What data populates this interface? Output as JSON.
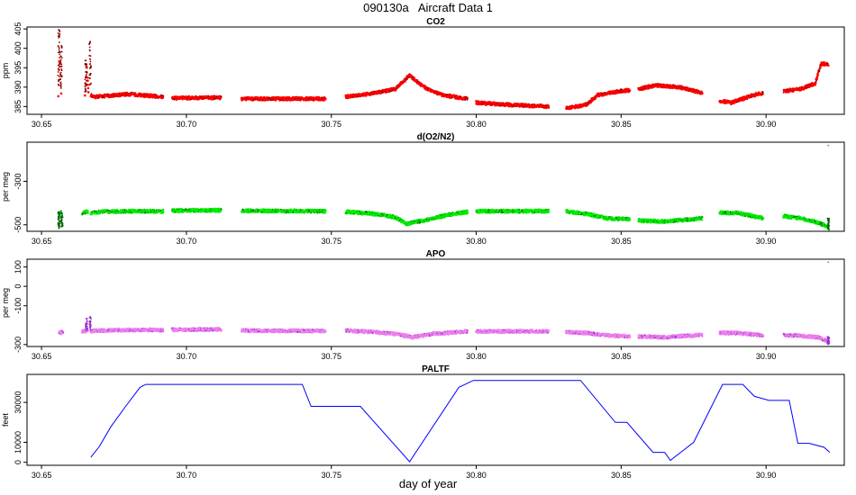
{
  "title": "090130a   Aircraft Data 1",
  "xlabel": "day of year",
  "x_ticks": [
    "30.65",
    "30.70",
    "30.75",
    "30.80",
    "30.85",
    "30.90"
  ],
  "chart_data": [
    {
      "type": "scatter",
      "title": "CO2",
      "ylabel": "ppm",
      "xlim": [
        30.645,
        30.927
      ],
      "ylim": [
        383,
        405.5
      ],
      "y_ticks": [
        "385",
        "390",
        "395",
        "400",
        "405"
      ],
      "colors": {
        "main": "#ff0000",
        "dark": "#8b0000"
      },
      "segments": [
        {
          "x": [
            30.6558,
            30.6562,
            30.6568
          ],
          "y": [
            388,
            398,
            388
          ]
        },
        {
          "x": [
            30.665,
            30.6655,
            30.6662
          ],
          "y": [
            388,
            396,
            389
          ]
        },
        {
          "x": [
            30.667,
            30.668,
            30.68,
            30.692
          ],
          "y": [
            388,
            387.5,
            388.2,
            387.5
          ]
        },
        {
          "x": [
            30.695,
            30.712
          ],
          "y": [
            387.2,
            387.3
          ]
        },
        {
          "x": [
            30.719,
            30.748
          ],
          "y": [
            387,
            387
          ]
        },
        {
          "x": [
            30.755,
            30.765,
            30.772,
            30.777,
            30.782,
            30.788,
            30.797
          ],
          "y": [
            387.5,
            388.5,
            389.5,
            393,
            390,
            388,
            387
          ]
        },
        {
          "x": [
            30.8,
            30.81,
            30.825
          ],
          "y": [
            386,
            385.5,
            385
          ]
        },
        {
          "x": [
            30.831,
            30.838,
            30.842,
            30.85,
            30.853
          ],
          "y": [
            384.5,
            385.5,
            388,
            389,
            389.2
          ]
        },
        {
          "x": [
            30.856,
            30.862,
            30.87,
            30.878
          ],
          "y": [
            389.5,
            390.5,
            390,
            388.5
          ]
        },
        {
          "x": [
            30.884,
            30.888,
            30.896,
            30.899
          ],
          "y": [
            386.5,
            386,
            388,
            388.5
          ]
        },
        {
          "x": [
            30.906,
            30.912,
            30.917,
            30.919,
            30.9215
          ],
          "y": [
            389,
            389.5,
            391,
            396,
            396
          ]
        }
      ],
      "spikes": [
        {
          "x": 30.656,
          "y_low": 388,
          "y_high": 405
        },
        {
          "x": 30.6568,
          "y_low": 390,
          "y_high": 401
        },
        {
          "x": 30.6653,
          "y_low": 388,
          "y_high": 397
        },
        {
          "x": 30.6668,
          "y_low": 390,
          "y_high": 402
        }
      ]
    },
    {
      "type": "scatter",
      "title": "d(O2/N2)",
      "ylabel": "per meg",
      "xlim": [
        30.645,
        30.927
      ],
      "ylim": [
        -530,
        -120
      ],
      "y_ticks": [
        "-500",
        "-300"
      ],
      "colors": {
        "main": "#00ee00",
        "dark": "#006400"
      },
      "segments": [
        {
          "x": [
            30.656,
            30.657
          ],
          "y": [
            -450,
            -440
          ]
        },
        {
          "x": [
            30.664,
            30.666
          ],
          "y": [
            -445,
            -440
          ]
        },
        {
          "x": [
            30.667,
            30.67,
            30.68,
            30.692
          ],
          "y": [
            -445,
            -440,
            -438,
            -438
          ]
        },
        {
          "x": [
            30.695,
            30.712
          ],
          "y": [
            -435,
            -433
          ]
        },
        {
          "x": [
            30.719,
            30.748
          ],
          "y": [
            -435,
            -438
          ]
        },
        {
          "x": [
            30.755,
            30.765,
            30.772,
            30.776,
            30.782,
            30.79,
            30.797
          ],
          "y": [
            -440,
            -450,
            -465,
            -495,
            -480,
            -455,
            -440
          ]
        },
        {
          "x": [
            30.8,
            30.825
          ],
          "y": [
            -438,
            -437
          ]
        },
        {
          "x": [
            30.831,
            30.838,
            30.845,
            30.853
          ],
          "y": [
            -438,
            -450,
            -470,
            -475
          ]
        },
        {
          "x": [
            30.856,
            30.865,
            30.878
          ],
          "y": [
            -480,
            -485,
            -470
          ]
        },
        {
          "x": [
            30.884,
            30.89,
            30.899
          ],
          "y": [
            -445,
            -445,
            -470
          ]
        },
        {
          "x": [
            30.906,
            30.912,
            30.918,
            30.9215
          ],
          "y": [
            -460,
            -470,
            -490,
            -510
          ]
        }
      ],
      "spikes": [
        {
          "x": 30.656,
          "y_low": -520,
          "y_high": -440
        },
        {
          "x": 30.657,
          "y_low": -510,
          "y_high": -445
        },
        {
          "x": 30.9215,
          "y_low": -530,
          "y_high": -470
        }
      ],
      "outliers": [
        {
          "x": 30.9215,
          "y": -135
        }
      ]
    },
    {
      "type": "scatter",
      "title": "APO",
      "ylabel": "per meg",
      "xlim": [
        30.645,
        30.927
      ],
      "ylim": [
        -310,
        140
      ],
      "y_ticks": [
        "-300",
        "-100",
        "0",
        "100"
      ],
      "colors": {
        "main": "#ee82ee",
        "dark": "#9932cc"
      },
      "segments": [
        {
          "x": [
            30.656,
            30.6575
          ],
          "y": [
            -240,
            -235
          ]
        },
        {
          "x": [
            30.664,
            30.666
          ],
          "y": [
            -235,
            -225
          ]
        },
        {
          "x": [
            30.667,
            30.67,
            30.68,
            30.692
          ],
          "y": [
            -230,
            -228,
            -225,
            -225
          ]
        },
        {
          "x": [
            30.695,
            30.712
          ],
          "y": [
            -223,
            -222
          ]
        },
        {
          "x": [
            30.719,
            30.748
          ],
          "y": [
            -228,
            -230
          ]
        },
        {
          "x": [
            30.755,
            30.765,
            30.772,
            30.778,
            30.785,
            30.797
          ],
          "y": [
            -228,
            -235,
            -245,
            -262,
            -245,
            -232
          ]
        },
        {
          "x": [
            30.8,
            30.825
          ],
          "y": [
            -232,
            -232
          ]
        },
        {
          "x": [
            30.831,
            30.838,
            30.845,
            30.853
          ],
          "y": [
            -235,
            -240,
            -253,
            -258
          ]
        },
        {
          "x": [
            30.856,
            30.865,
            30.878
          ],
          "y": [
            -258,
            -262,
            -250
          ]
        },
        {
          "x": [
            30.884,
            30.89,
            30.899
          ],
          "y": [
            -240,
            -240,
            -253
          ]
        },
        {
          "x": [
            30.906,
            30.912,
            30.918,
            30.9215
          ],
          "y": [
            -250,
            -255,
            -262,
            -285
          ]
        }
      ],
      "spikes": [
        {
          "x": 30.6655,
          "y_low": -235,
          "y_high": -165
        },
        {
          "x": 30.6668,
          "y_low": -230,
          "y_high": -155
        },
        {
          "x": 30.9215,
          "y_low": -300,
          "y_high": -260
        }
      ],
      "outliers": [
        {
          "x": 30.9215,
          "y": 125
        }
      ]
    },
    {
      "type": "line",
      "title": "PALTF",
      "ylabel": "feet",
      "xlim": [
        30.645,
        30.927
      ],
      "ylim": [
        -1500,
        44000
      ],
      "y_ticks": [
        "0",
        "10000",
        "30000"
      ],
      "colors": {
        "line": "#0000ff"
      },
      "x": [
        30.667,
        30.67,
        30.674,
        30.679,
        30.684,
        30.686,
        30.74,
        30.743,
        30.76,
        30.777,
        30.794,
        30.799,
        30.802,
        30.836,
        30.848,
        30.852,
        30.861,
        30.865,
        30.867,
        30.875,
        30.885,
        30.892,
        30.896,
        30.901,
        30.908,
        30.911,
        30.915,
        30.92,
        30.922
      ],
      "y": [
        2500,
        8000,
        18000,
        28000,
        37500,
        39000,
        39000,
        28000,
        28000,
        300,
        37500,
        41000,
        41000,
        41000,
        20000,
        20000,
        5000,
        5000,
        1000,
        10000,
        39000,
        39000,
        33000,
        31000,
        31000,
        9500,
        9500,
        7500,
        5000
      ]
    }
  ]
}
